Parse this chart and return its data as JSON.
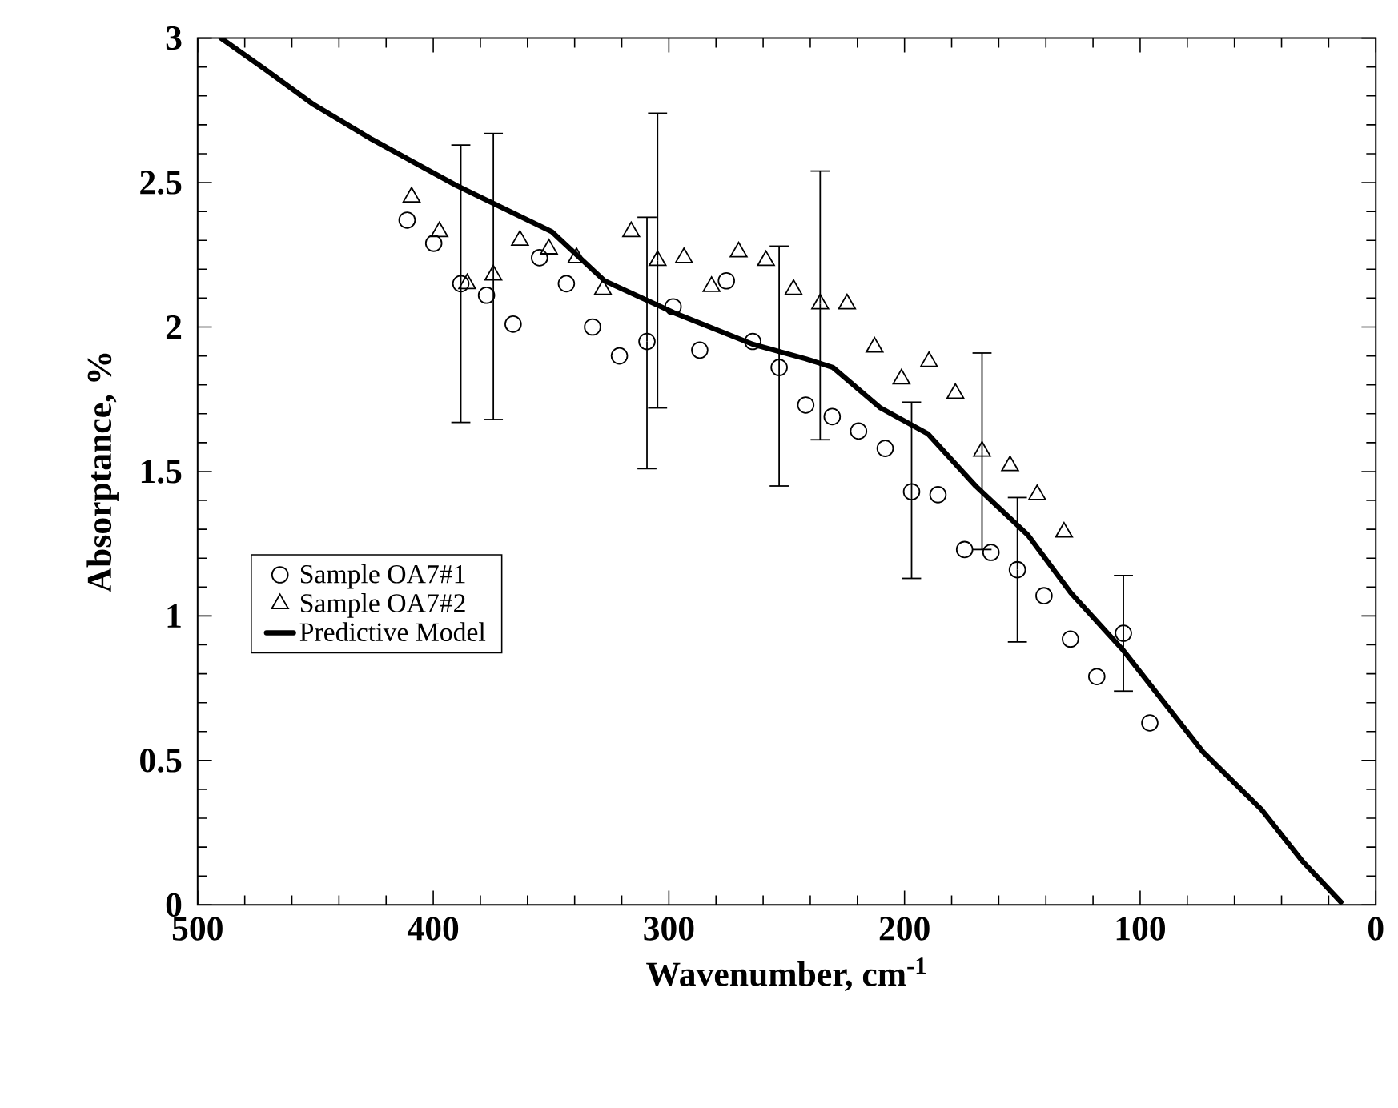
{
  "chart_data": {
    "type": "scatter",
    "xlabel": "Wavenumber,  cm$^{-1}$",
    "ylabel": "Absorptance,  %",
    "xlim": [
      500,
      0
    ],
    "ylim": [
      0,
      3
    ],
    "xticks": [
      500,
      400,
      300,
      200,
      100,
      0
    ],
    "yticks": [
      0,
      0.5,
      1,
      1.5,
      2,
      2.5,
      3
    ],
    "grid": false,
    "legend": "left",
    "series": [
      {
        "name": "Sample OA7#1",
        "marker": "circle",
        "color": "#000000",
        "x": [
          411.1,
          399.8,
          388.3,
          377.4,
          366.1,
          354.9,
          343.5,
          332.4,
          321.0,
          309.3,
          298.2,
          286.9,
          275.6,
          264.4,
          253.2,
          241.9,
          230.7,
          219.5,
          208.2,
          197.0,
          185.8,
          174.5,
          163.3,
          152.1,
          140.8,
          129.6,
          118.4,
          107.1,
          95.9
        ],
        "values": [
          2.37,
          2.29,
          2.15,
          2.11,
          2.01,
          2.24,
          2.15,
          2.0,
          1.9,
          1.95,
          2.07,
          1.92,
          2.16,
          1.95,
          1.86,
          1.73,
          1.69,
          1.64,
          1.58,
          1.43,
          1.42,
          1.23,
          1.22,
          1.16,
          1.07,
          0.92,
          0.79,
          0.94,
          0.63
        ],
        "errors": [
          null,
          null,
          [
            1.67,
            2.63
          ],
          null,
          null,
          null,
          null,
          null,
          null,
          [
            1.51,
            2.38
          ],
          null,
          null,
          null,
          null,
          [
            1.45,
            2.28
          ],
          null,
          null,
          null,
          null,
          [
            1.13,
            1.74
          ],
          null,
          null,
          null,
          [
            0.91,
            1.41
          ],
          null,
          null,
          null,
          [
            0.74,
            1.14
          ],
          null
        ]
      },
      {
        "name": "Sample OA7#2",
        "marker": "triangle",
        "color": "#000000",
        "x": [
          409.2,
          397.4,
          385.6,
          374.5,
          363.2,
          350.9,
          339.2,
          328.0,
          316.0,
          304.8,
          293.6,
          281.9,
          270.4,
          258.8,
          247.1,
          235.8,
          224.4,
          212.7,
          201.3,
          189.6,
          178.4,
          167.1,
          155.2,
          143.7,
          132.3
        ],
        "values": [
          2.45,
          2.33,
          2.15,
          2.18,
          2.3,
          2.27,
          2.24,
          2.13,
          2.33,
          2.23,
          2.24,
          2.14,
          2.26,
          2.23,
          2.13,
          2.08,
          2.08,
          1.93,
          1.82,
          1.88,
          1.77,
          1.57,
          1.52,
          1.42,
          1.29
        ],
        "errors": [
          null,
          null,
          null,
          [
            1.68,
            2.67
          ],
          null,
          null,
          null,
          null,
          null,
          [
            1.72,
            2.74
          ],
          null,
          null,
          null,
          null,
          null,
          [
            1.61,
            2.54
          ],
          null,
          null,
          null,
          null,
          null,
          [
            1.23,
            1.91
          ],
          null,
          null,
          null
        ]
      },
      {
        "name": "Predictive Model",
        "type": "line",
        "marker": "none",
        "line_style": "solid",
        "color": "#000000",
        "x": [
          490.1,
          471.0,
          450.8,
          426.1,
          390.2,
          349.7,
          327.3,
          298.0,
          264.3,
          241.9,
          230.4,
          210.2,
          190.0,
          169.8,
          147.6,
          129.4,
          107.1,
          73.4,
          48.5,
          31.0,
          14.8
        ],
        "values": [
          3.0,
          2.89,
          2.77,
          2.65,
          2.49,
          2.33,
          2.16,
          2.05,
          1.94,
          1.89,
          1.86,
          1.72,
          1.63,
          1.45,
          1.28,
          1.08,
          0.88,
          0.53,
          0.33,
          0.15,
          0.01
        ]
      }
    ]
  }
}
